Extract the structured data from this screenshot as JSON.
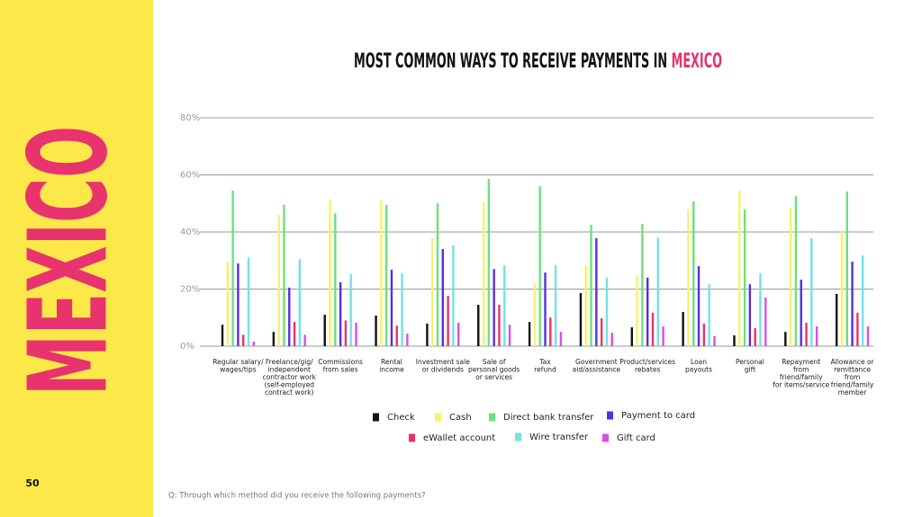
{
  "page_number": "50",
  "sidebar_title": "MEXICO",
  "footnote": "Q: Through which method did you receive the following payments?",
  "chart_data": {
    "type": "bar",
    "title": "MOST COMMON WAYS TO RECEIVE PAYMENTS IN",
    "title_highlight": "MEXICO",
    "categories": [
      "Regular salary/\nwages/tips",
      "Freelance/gig/\nindependent\ncontractor work\n(self-employed\ncontract work)",
      "Commissions\nfrom sales",
      "Rental\nincome",
      "Investment sale\nor dividends",
      "Sale of\npersonal goods\nor services",
      "Tax\nrefund",
      "Government\naid/assistance",
      "Product/services\nrebates",
      "Loan\npayouts",
      "Personal\ngift",
      "Repayment\nfrom\nfriend/family\nfor items/service",
      "Allowance or\nremittance\nfrom\nfriend/family\nmember"
    ],
    "series": [
      {
        "name": "Check",
        "color": "#111111",
        "values": [
          7.5,
          5,
          11,
          10.7,
          7.9,
          14.5,
          8.5,
          18.6,
          6.6,
          12,
          3.8,
          5,
          18.3
        ]
      },
      {
        "name": "Cash",
        "color": "#f3f36b",
        "values": [
          29.6,
          46,
          51.5,
          51,
          37.8,
          50.4,
          22,
          28.3,
          24.9,
          47.9,
          54.5,
          48.5,
          40.3
        ]
      },
      {
        "name": "Direct bank transfer",
        "color": "#6ee07a",
        "values": [
          54.5,
          49.5,
          46.5,
          49.5,
          50,
          58.6,
          56,
          42.5,
          42.8,
          50.7,
          47.9,
          52.6,
          54.2
        ]
      },
      {
        "name": "Payment to card",
        "color": "#5a2de0",
        "values": [
          29,
          20.5,
          22.4,
          26.8,
          34,
          27,
          25.8,
          37.8,
          24,
          28,
          21.7,
          23.3,
          29.6
        ]
      },
      {
        "name": "eWallet account",
        "color": "#e8336f",
        "values": [
          4,
          8.5,
          9,
          7.2,
          17.6,
          14.5,
          10,
          9.8,
          11.7,
          7.9,
          6.3,
          8.2,
          11.7
        ]
      },
      {
        "name": "Wire transfer",
        "color": "#72e2e2",
        "values": [
          31,
          30.5,
          25.2,
          25.5,
          35.3,
          28.3,
          28.3,
          24,
          38.1,
          21.7,
          25.5,
          37.8,
          31.8
        ]
      },
      {
        "name": "Gift card",
        "color": "#d84ee8",
        "values": [
          1.6,
          4,
          8.2,
          4.4,
          8.2,
          7.5,
          5,
          4.7,
          6.9,
          3.5,
          17,
          6.9,
          6.9
        ]
      }
    ],
    "ylim": [
      0,
      80
    ],
    "yticks": [
      {
        "value": 0,
        "label": "0%"
      },
      {
        "value": 20,
        "label": "20%"
      },
      {
        "value": 40,
        "label": "40%"
      },
      {
        "value": 60,
        "label": "60%"
      },
      {
        "value": 80,
        "label": "80%"
      }
    ],
    "grid": true
  }
}
